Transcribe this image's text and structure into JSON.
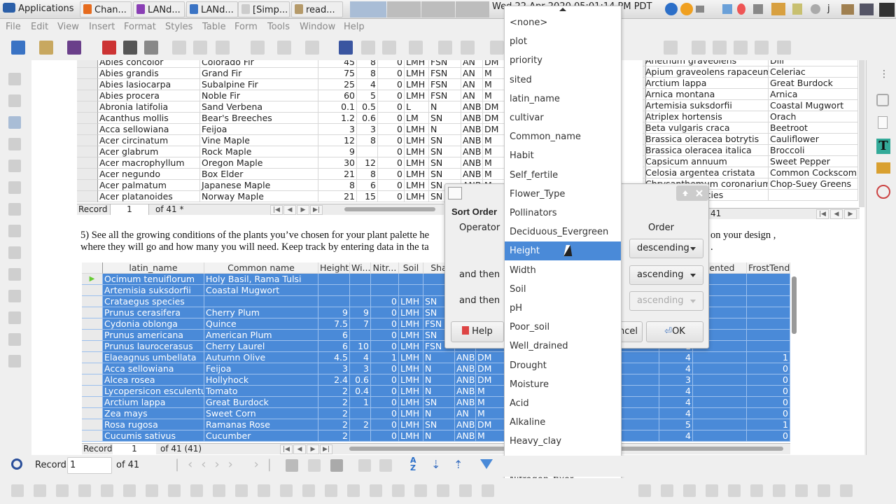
{
  "taskbar": {
    "apps_label": "Applications",
    "tasks": [
      {
        "label": "Chan...",
        "color": "#e66b1e"
      },
      {
        "label": "LANd...",
        "color": "#8a3fb5"
      },
      {
        "label": "LANd...",
        "color": "#3a73c4"
      },
      {
        "label": "[Simp...",
        "color": "#cccccc"
      },
      {
        "label": "read...",
        "color": "#b59a6a"
      }
    ],
    "clock": "Wed 22 Apr 2020 05:01:14 PM PDT",
    "tray_user": "j"
  },
  "menubar": [
    "File",
    "Edit",
    "View",
    "Insert",
    "Format",
    "Styles",
    "Table",
    "Form",
    "Tools",
    "Window",
    "Help"
  ],
  "top_table": {
    "rows": [
      [
        "Abies concolor",
        "Colorado Fir",
        "45",
        "8",
        "0",
        "LMH",
        "FSN",
        "AN",
        "DM"
      ],
      [
        "Abies grandis",
        "Grand Fir",
        "75",
        "8",
        "0",
        "LMH",
        "FSN",
        "AN",
        "M"
      ],
      [
        "Abies lasiocarpa",
        "Subalpine Fir",
        "25",
        "4",
        "0",
        "LMH",
        "FSN",
        "AN",
        "M"
      ],
      [
        "Abies procera",
        "Noble Fir",
        "60",
        "5",
        "0",
        "LMH",
        "FSN",
        "AN",
        "M"
      ],
      [
        "Abronia latifolia",
        "Sand Verbena",
        "0.1",
        "0.5",
        "0",
        "L",
        "N",
        "ANB",
        "DM"
      ],
      [
        "Acanthus mollis",
        "Bear's Breeches",
        "1.2",
        "0.6",
        "0",
        "LM",
        "SN",
        "ANB",
        "DM"
      ],
      [
        "Acca sellowiana",
        "Feijoa",
        "3",
        "3",
        "0",
        "LMH",
        "N",
        "ANB",
        "DM"
      ],
      [
        "Acer circinatum",
        "Vine Maple",
        "12",
        "8",
        "0",
        "LMH",
        "SN",
        "ANB",
        "M"
      ],
      [
        "Acer glabrum",
        "Rock Maple",
        "9",
        "",
        "0",
        "LMH",
        "SN",
        "ANB",
        "M"
      ],
      [
        "Acer macrophyllum",
        "Oregon Maple",
        "30",
        "12",
        "0",
        "LMH",
        "SN",
        "ANB",
        "M"
      ],
      [
        "Acer negundo",
        "Box Elder",
        "21",
        "8",
        "0",
        "LMH",
        "SN",
        "ANB",
        "M"
      ],
      [
        "Acer palmatum",
        "Japanese Maple",
        "8",
        "6",
        "0",
        "LMH",
        "SN",
        "ANB",
        "M"
      ],
      [
        "Acer platanoides",
        "Norway Maple",
        "21",
        "15",
        "0",
        "LMH",
        "SN",
        "ANB",
        "M"
      ]
    ],
    "record_label": "Record",
    "record_value": "1",
    "record_of": "of 41 *"
  },
  "right_table": {
    "rows": [
      [
        "Anethum graveolens",
        "Dill"
      ],
      [
        "Apium graveolens rapaceum",
        "Celeriac"
      ],
      [
        "Arctium lappa",
        "Great Burdock"
      ],
      [
        "Arnica montana",
        "Arnica"
      ],
      [
        "Artemisia suksdorfii",
        "Coastal Mugwort"
      ],
      [
        "Atriplex hortensis",
        "Orach"
      ],
      [
        "Beta vulgaris craca",
        "Beetroot"
      ],
      [
        "Brassica oleracea botrytis",
        "Cauliflower"
      ],
      [
        "Brassica oleracea italica",
        "Broccoli"
      ],
      [
        "Capsicum annuum",
        "Sweet Pepper"
      ],
      [
        "Celosia argentea cristata",
        "Common Cockscomb"
      ],
      [
        "Chrysanthemum coronarium",
        "Chop-Suey Greens"
      ],
      [
        "Cucurbita species",
        ""
      ]
    ],
    "record_of": "41"
  },
  "paragraph": {
    "line1": "5)  See all the growing conditions of the plants you’ve chosen for your plant palette he",
    "line2": "where they will go and how many you will need.  Keep track by entering data in the ta",
    "line1_right": "on your design ,",
    "line2_right": "."
  },
  "bottom_table": {
    "headers": [
      "latin_name",
      "Common name",
      "Height",
      "Wi...",
      "Nitr...",
      "Soil",
      "Sha",
      "",
      "",
      "cented",
      "FrostTender"
    ],
    "rows": [
      [
        "Ocimum tenuiflorum",
        "Holy Basil, Rama Tulsi",
        "",
        "",
        "",
        "",
        "",
        "",
        "",
        "",
        ""
      ],
      [
        "Artemisia suksdorfii",
        "Coastal Mugwort",
        "",
        "",
        "",
        "",
        "",
        "",
        "",
        "",
        ""
      ],
      [
        "Crataegus species",
        "",
        "",
        "",
        "0",
        "LMH",
        "SN",
        "",
        "",
        "1",
        ""
      ],
      [
        "Prunus cerasifera",
        "Cherry Plum",
        "9",
        "9",
        "0",
        "LMH",
        "SN",
        "",
        "",
        "0",
        ""
      ],
      [
        "Cydonia oblonga",
        "Quince",
        "7.5",
        "7",
        "0",
        "LMH",
        "FSN",
        "",
        "",
        "0",
        ""
      ],
      [
        "Prunus americana",
        "American Plum",
        "6",
        "",
        "0",
        "LMH",
        "SN",
        "",
        "",
        "0",
        ""
      ],
      [
        "Prunus laurocerasus",
        "Cherry Laurel",
        "6",
        "10",
        "0",
        "LMH",
        "FSN",
        "",
        "",
        "1",
        ""
      ],
      [
        "Elaeagnus umbellata",
        "Autumn Olive",
        "4.5",
        "4",
        "1",
        "LMH",
        "N",
        "ANB",
        "DM",
        "4",
        "1"
      ],
      [
        "Acca sellowiana",
        "Feijoa",
        "3",
        "3",
        "0",
        "LMH",
        "N",
        "ANB",
        "DM",
        "4",
        "0"
      ],
      [
        "Alcea rosea",
        "Hollyhock",
        "2.4",
        "0.6",
        "0",
        "LMH",
        "N",
        "ANB",
        "DM",
        "3",
        "0"
      ],
      [
        "Lycopersicon esculentum",
        "Tomato",
        "2",
        "0.4",
        "0",
        "LMH",
        "N",
        "ANB",
        "M",
        "4",
        "0"
      ],
      [
        "Arctium lappa",
        "Great Burdock",
        "2",
        "1",
        "0",
        "LMH",
        "SN",
        "ANB",
        "M",
        "4",
        "0"
      ],
      [
        "Zea mays",
        "Sweet Corn",
        "2",
        "",
        "0",
        "LMH",
        "N",
        "AN",
        "M",
        "4",
        "0"
      ],
      [
        "Rosa rugosa",
        "Ramanas Rose",
        "2",
        "2",
        "0",
        "LMH",
        "SN",
        "ANB",
        "DM",
        "5",
        "1"
      ],
      [
        "Cucumis sativus",
        "Cucumber",
        "2",
        "",
        "0",
        "LMH",
        "N",
        "ANB",
        "M",
        "4",
        "0"
      ]
    ],
    "record_label": "Record",
    "record_value": "1",
    "record_of": "of 41 (41)"
  },
  "dialog": {
    "title": "Sort Order",
    "operator_label": "Operator",
    "order_label": "Order",
    "and_then_1": "and then",
    "and_then_2": "and then",
    "order_1": "descending",
    "order_2": "ascending",
    "order_3": "ascending",
    "help_label": "Help",
    "cancel_label": "Cancel",
    "ok_label": "OK"
  },
  "field_popup": {
    "options": [
      "<none>",
      "plot",
      "priority",
      "sited",
      "latin_name",
      "cultivar",
      "Common_name",
      "Habit",
      "Self_fertile",
      "Flower_Type",
      "Pollinators",
      "Deciduous_Evergreen",
      "Height",
      "Width",
      "Soil",
      "pH",
      "Poor_soil",
      "Well_drained",
      "Drought",
      "Moisture",
      "Acid",
      "Alkaline",
      "Heavy_clay",
      "Shade",
      "Nitrogen_fixer"
    ],
    "highlighted": "Height"
  },
  "form_nav": {
    "record_label": "Record",
    "record_value": "1",
    "record_of": "of 41"
  },
  "colors": {
    "selection": "#4a8ad8",
    "accent_green": "#66cc33"
  }
}
